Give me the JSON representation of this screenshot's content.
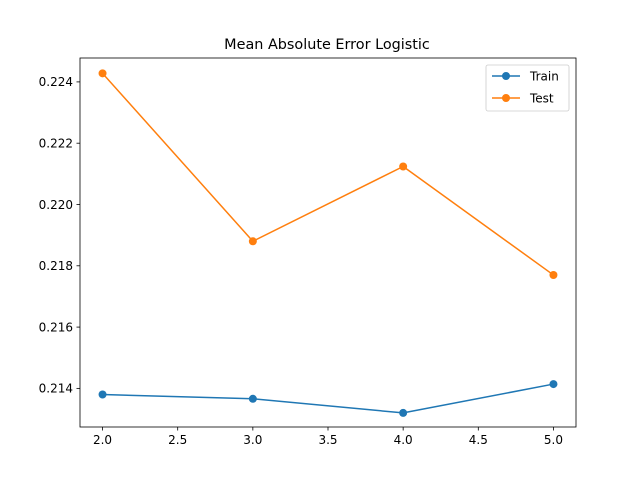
{
  "chart_data": {
    "type": "line",
    "title": "Mean Absolute Error Logistic",
    "xlabel": "",
    "ylabel": "",
    "x": [
      2,
      3,
      4,
      5
    ],
    "xlim": [
      1.85,
      5.15
    ],
    "ylim": [
      0.21274,
      0.22478
    ],
    "xticks": [
      2.0,
      2.5,
      3.0,
      3.5,
      4.0,
      4.5,
      5.0
    ],
    "xtick_labels": [
      "2.0",
      "2.5",
      "3.0",
      "3.5",
      "4.0",
      "4.5",
      "5.0"
    ],
    "yticks": [
      0.214,
      0.216,
      0.218,
      0.22,
      0.222,
      0.224
    ],
    "ytick_labels": [
      "0.214",
      "0.216",
      "0.218",
      "0.220",
      "0.222",
      "0.224"
    ],
    "grid": false,
    "legend_position": "top-right",
    "series": [
      {
        "name": "Train",
        "color": "#1f77b4",
        "marker": "circle",
        "values": [
          0.2138,
          0.21366,
          0.2132,
          0.21414
        ]
      },
      {
        "name": "Test",
        "color": "#ff7f0e",
        "marker": "circle",
        "values": [
          0.22428,
          0.2188,
          0.22124,
          0.2177
        ]
      }
    ]
  }
}
